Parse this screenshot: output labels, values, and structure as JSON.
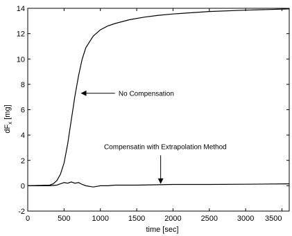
{
  "chart_data": {
    "type": "line",
    "xlabel": "time [sec]",
    "ylabel": "dF",
    "ylabel_sub": "x",
    "ylabel_unit": "[mg]",
    "xlim": [
      0,
      3600
    ],
    "ylim": [
      -2,
      14
    ],
    "xticks": [
      0,
      500,
      1000,
      1500,
      2000,
      2500,
      3000,
      3500
    ],
    "yticks": [
      -2,
      0,
      2,
      4,
      6,
      8,
      10,
      12,
      14
    ],
    "xtick_labels": [
      "0",
      "500",
      "1000",
      "1500",
      "2000",
      "2500",
      "3000",
      "3500"
    ],
    "ytick_labels": [
      "-2",
      "0",
      "2",
      "4",
      "6",
      "8",
      "10",
      "12",
      "14"
    ],
    "grid": false,
    "series": [
      {
        "color": "#000000",
        "x": [
          0,
          300,
          350,
          400,
          450,
          500,
          550,
          600,
          650,
          700,
          750,
          800,
          900,
          1000,
          1100,
          1200,
          1400,
          1600,
          1800,
          2000,
          2500,
          3000,
          3600
        ],
        "y": [
          0.0,
          0.05,
          0.15,
          0.4,
          0.9,
          1.8,
          3.3,
          5.2,
          7.1,
          8.7,
          10.0,
          10.9,
          11.8,
          12.3,
          12.6,
          12.8,
          13.1,
          13.3,
          13.45,
          13.55,
          13.75,
          13.85,
          13.95
        ]
      },
      {
        "color": "#000000",
        "x": [
          0,
          300,
          400,
          450,
          500,
          550,
          600,
          650,
          700,
          750,
          800,
          850,
          900,
          950,
          1000,
          1100,
          1200,
          1500,
          2000,
          2500,
          3000,
          3600
        ],
        "y": [
          0.0,
          0.0,
          0.05,
          0.15,
          0.25,
          0.2,
          0.3,
          0.2,
          0.25,
          0.1,
          0.0,
          -0.05,
          -0.1,
          -0.05,
          0.0,
          0.0,
          0.05,
          0.05,
          0.1,
          0.1,
          0.12,
          0.15
        ]
      }
    ],
    "annotations": [
      {
        "text": "No Compensation",
        "text_x": 1250,
        "text_y": 7.3,
        "arrow_from": [
          1200,
          7.3
        ],
        "arrow_to": [
          740,
          7.3
        ]
      },
      {
        "text": "Compensatin with Extrapolation Method",
        "text_x": 1050,
        "text_y": 3.1,
        "arrow_from": [
          1830,
          2.4
        ],
        "arrow_to": [
          1830,
          0.2
        ]
      }
    ]
  }
}
